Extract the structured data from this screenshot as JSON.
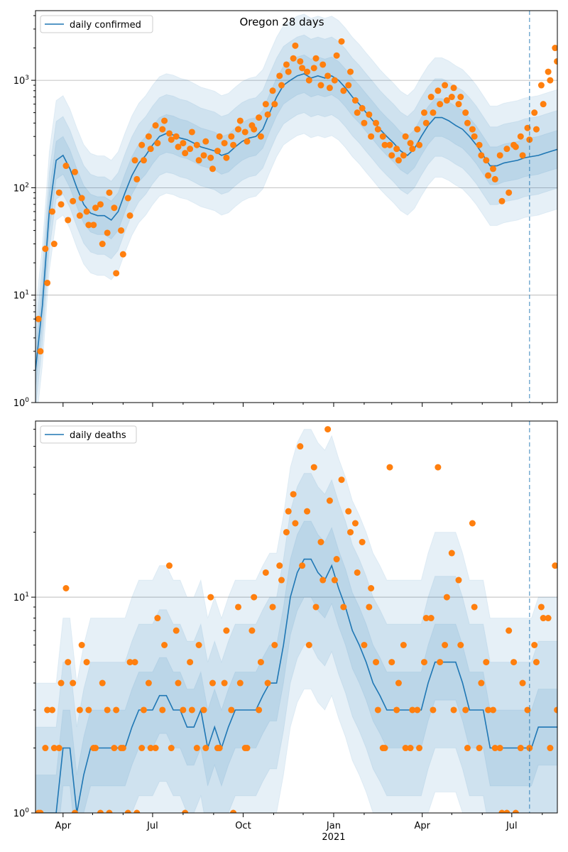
{
  "chart_data": [
    {
      "type": "line",
      "title": "Oregon 28 days",
      "legend": "daily confirmed",
      "legend_placement": "upper-left",
      "start_date": "2020-03-04",
      "x_step_days": 7,
      "point_offset_days": 3,
      "ylim": [
        1,
        4450
      ],
      "yscale": "log",
      "ytick_labels": [
        "10^0",
        "10^1",
        "10^2",
        "10^3"
      ],
      "yticks": [
        1,
        10,
        100,
        1000
      ],
      "line": [
        2,
        8,
        60,
        180,
        200,
        150,
        100,
        70,
        58,
        55,
        55,
        50,
        60,
        90,
        130,
        170,
        200,
        250,
        300,
        320,
        310,
        290,
        280,
        260,
        240,
        230,
        220,
        200,
        210,
        240,
        270,
        290,
        300,
        350,
        500,
        700,
        900,
        1000,
        1100,
        1150,
        1050,
        1100,
        1050,
        1100,
        1000,
        850,
        700,
        600,
        500,
        420,
        350,
        300,
        260,
        220,
        200,
        230,
        300,
        380,
        450,
        450,
        420,
        380,
        350,
        300,
        250,
        200,
        160,
        160,
        170,
        175,
        180,
        190,
        195,
        200,
        210,
        220,
        230
      ],
      "band_factors": [
        1.5,
        2.3,
        3.6
      ],
      "points": [
        6,
        27,
        60,
        90,
        160,
        75,
        55,
        60,
        45,
        70,
        38,
        65,
        40,
        80,
        180,
        250,
        300,
        380,
        350,
        320,
        300,
        260,
        230,
        250,
        200,
        190,
        220,
        260,
        300,
        350,
        330,
        380,
        450,
        600,
        800,
        1100,
        1400,
        1600,
        1500,
        1200,
        1300,
        900,
        1100,
        1000,
        2300,
        900,
        650,
        550,
        480,
        400,
        300,
        250,
        230,
        200,
        260,
        350,
        500,
        700,
        800,
        900,
        700,
        600,
        500,
        350,
        250,
        180,
        150,
        200,
        230,
        250,
        300,
        360,
        500,
        900,
        1200,
        2000,
        1900
      ],
      "points2": [
        3,
        13,
        30,
        70,
        50,
        140,
        80,
        45,
        65,
        30,
        90,
        16,
        24,
        55,
        120,
        180,
        230,
        260,
        420,
        280,
        240,
        210,
        330,
        180,
        270,
        150,
        300,
        190,
        250,
        420,
        270,
        350,
        300,
        480,
        600,
        900,
        1200,
        2100,
        1300,
        1000,
        1600,
        1400,
        850,
        1700,
        800,
        1200,
        500,
        400,
        300,
        350,
        250,
        200,
        180,
        300,
        230,
        250,
        400,
        500,
        600,
        650,
        850,
        700,
        400,
        300,
        200,
        130,
        120,
        75,
        90,
        240,
        200,
        280,
        350,
        600,
        1000,
        1500,
        2200
      ]
    },
    {
      "type": "line",
      "title": "",
      "legend": "daily deaths",
      "legend_placement": "upper-left",
      "start_date": "2020-03-04",
      "x_step_days": 7,
      "point_offset_days": 3,
      "ylim": [
        1,
        65.5
      ],
      "yscale": "log",
      "ytick_labels": [
        "10^0",
        "10^1"
      ],
      "yticks": [
        1,
        10
      ],
      "xtick_labels": [
        "Apr",
        "Jul",
        "Oct",
        "Jan\n2021",
        "Apr",
        "Jul"
      ],
      "xticks": [
        "2020-04-01",
        "2020-07-01",
        "2020-10-01",
        "2021-01-01",
        "2021-04-01",
        "2021-07-01"
      ],
      "vline_date": "2021-07-19",
      "line": [
        1,
        1,
        1,
        1,
        2,
        2,
        1,
        1.5,
        2,
        2,
        2,
        2,
        2,
        2,
        2.5,
        3,
        3,
        3,
        3.5,
        3.5,
        3,
        3,
        2.5,
        2.5,
        3,
        2,
        2.5,
        2,
        2.5,
        3,
        3,
        3,
        3,
        3.5,
        4,
        4,
        6,
        10,
        13,
        15,
        15,
        13,
        12,
        14,
        11,
        9,
        7,
        6,
        5,
        4,
        3.5,
        3,
        3,
        3,
        3,
        3,
        3,
        4,
        5,
        5,
        5,
        5,
        4,
        3,
        3,
        3,
        2,
        2,
        2,
        2,
        2,
        2,
        2,
        2.5,
        2.5,
        2.5,
        2.5
      ],
      "band_factors": [
        1.5,
        2.5,
        4
      ],
      "points": [
        1,
        2,
        3,
        2,
        11,
        4,
        3,
        5,
        2,
        1,
        3,
        2,
        2,
        1,
        5,
        2,
        4,
        2,
        3,
        14,
        7,
        3,
        5,
        2,
        3,
        10,
        2,
        4,
        3,
        9,
        2,
        7,
        3,
        13,
        9,
        14,
        20,
        30,
        50,
        25,
        40,
        18,
        60,
        12,
        35,
        25,
        22,
        18,
        9,
        5,
        2,
        40,
        3,
        6,
        2,
        3,
        5,
        8,
        40,
        6,
        16,
        12,
        3,
        22,
        2,
        5,
        3,
        2,
        1,
        5,
        2,
        3,
        6,
        9,
        8,
        14,
        7
      ],
      "points2": [
        1,
        3,
        2,
        4,
        5,
        1,
        6,
        3,
        2,
        4,
        1,
        3,
        2,
        5,
        1,
        3,
        2,
        8,
        6,
        2,
        4,
        1,
        3,
        6,
        2,
        4,
        2,
        7,
        1,
        4,
        2,
        10,
        5,
        4,
        6,
        12,
        25,
        22,
        14,
        6,
        9,
        12,
        28,
        15,
        9,
        20,
        13,
        6,
        11,
        3,
        2,
        5,
        4,
        2,
        3,
        2,
        8,
        3,
        5,
        10,
        3,
        6,
        2,
        9,
        4,
        3,
        2,
        1,
        7,
        1,
        4,
        2,
        5,
        8,
        2,
        3,
        9
      ]
    }
  ],
  "colors": {
    "line": "#1f77b4",
    "points": "#ff7f0e",
    "band": "#1f77b4",
    "grid": "#b0b0b0"
  }
}
